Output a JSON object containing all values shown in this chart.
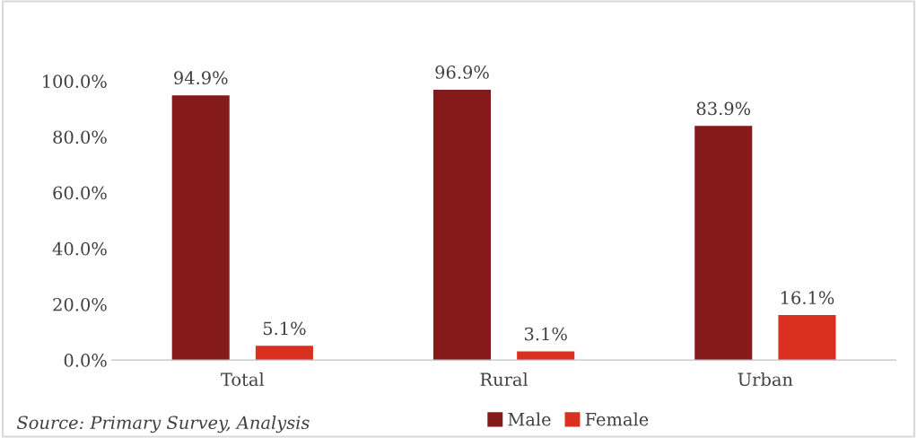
{
  "chart_data": {
    "type": "bar",
    "categories": [
      "Total",
      "Rural",
      "Urban"
    ],
    "series": [
      {
        "name": "Male",
        "color": "#841a1a",
        "values": [
          94.9,
          96.9,
          83.9
        ],
        "value_labels": [
          "94.9%",
          "96.9%",
          "83.9%"
        ]
      },
      {
        "name": "Female",
        "color": "#d93020",
        "values": [
          5.1,
          3.1,
          16.1
        ],
        "value_labels": [
          "5.1%",
          "3.1%",
          "16.1%"
        ]
      }
    ],
    "ylim": [
      0,
      100
    ],
    "yticks": [
      {
        "value": 0,
        "label": "0.0%"
      },
      {
        "value": 20,
        "label": "20.0%"
      },
      {
        "value": 40,
        "label": "40.0%"
      },
      {
        "value": 60,
        "label": "60.0%"
      },
      {
        "value": 80,
        "label": "80.0%"
      },
      {
        "value": 100,
        "label": "100.0%"
      }
    ],
    "grid": false,
    "legend": "bottom",
    "annotations": [
      "Source: Primary Survey, Analysis"
    ]
  }
}
